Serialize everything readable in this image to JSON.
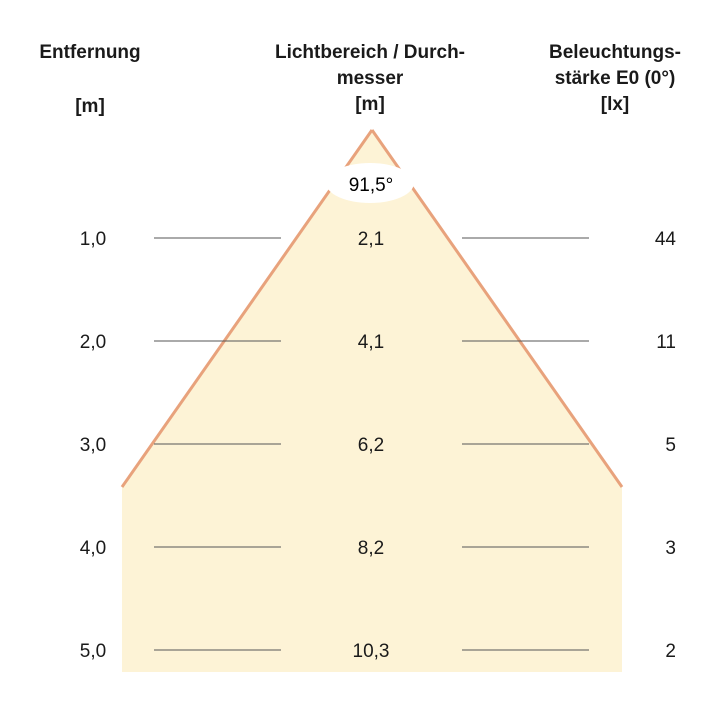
{
  "headers": {
    "distance": {
      "line1": "Entfernung",
      "unit": "[m]"
    },
    "diameter": {
      "line1": "Lichtbereich / Durch-",
      "line2": "messer",
      "unit": "[m]"
    },
    "illuminance": {
      "line1": "Beleuchtungs-",
      "line2": "stärke E0 (0°)",
      "unit": "[lx]"
    }
  },
  "beam_angle_label": "91,5°",
  "rows": [
    {
      "distance": "1,0",
      "diameter": "2,1",
      "illuminance": "44"
    },
    {
      "distance": "2,0",
      "diameter": "4,1",
      "illuminance": "11"
    },
    {
      "distance": "3,0",
      "diameter": "6,2",
      "illuminance": "5"
    },
    {
      "distance": "4,0",
      "diameter": "8,2",
      "illuminance": "3"
    },
    {
      "distance": "5,0",
      "diameter": "10,3",
      "illuminance": "2"
    }
  ],
  "colors": {
    "beam_fill": "#fdf3d6",
    "beam_edge": "#e8a27c",
    "rule_line": "#555555",
    "text": "#1a1a1a"
  }
}
